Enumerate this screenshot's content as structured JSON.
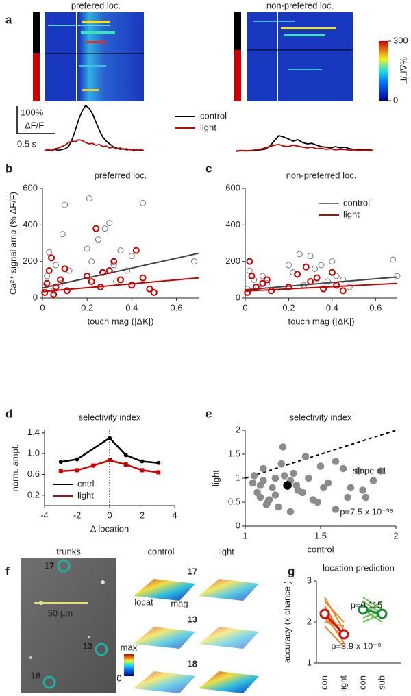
{
  "panel_labels": [
    "a",
    "b",
    "c",
    "d",
    "e",
    "f",
    "g"
  ],
  "panel_f": {
    "title": "trunks",
    "scale": "50 µm",
    "rois": [
      "17",
      "13",
      "18"
    ],
    "columns": [
      "control",
      "light"
    ],
    "row_labels": [
      "17",
      "13",
      "18"
    ],
    "axis_labels": [
      "locat",
      "mag"
    ],
    "colorbar": [
      "max",
      "0"
    ]
  },
  "chart_data": [
    {
      "type": "heatmap",
      "title": "prefered loc."
    },
    {
      "type": "heatmap",
      "title": "non-prefered loc.",
      "colorbar": {
        "label": "%ΔF/F",
        "ylim": [
          0,
          300
        ],
        "yticks": [
          0,
          300
        ]
      }
    },
    {
      "type": "line",
      "scalebar": {
        "y": "100%",
        "y_unit": "ΔF/F",
        "x": "0.5 s"
      },
      "series": [
        {
          "name": "control",
          "color": "#000000",
          "values": [
            5,
            8,
            4,
            10,
            6,
            9,
            12,
            20,
            45,
            80,
            120,
            150,
            170,
            160,
            140,
            110,
            80,
            55,
            40,
            30,
            20,
            15,
            10,
            12,
            8,
            10,
            6,
            9,
            7,
            5
          ]
        },
        {
          "name": "light",
          "color": "#cc0000",
          "values": [
            5,
            10,
            6,
            12,
            15,
            20,
            25,
            35,
            40,
            38,
            45,
            42,
            35,
            30,
            32,
            25,
            28,
            20,
            22,
            15,
            18,
            12,
            15,
            10,
            12,
            8,
            10,
            7,
            9,
            6
          ]
        }
      ]
    },
    {
      "type": "line",
      "series": [
        {
          "color": "#000000",
          "values": [
            3,
            5,
            4,
            6,
            5,
            8,
            10,
            20,
            40,
            60,
            55,
            48,
            40,
            45,
            35,
            30,
            32,
            25,
            20,
            18,
            15,
            20,
            15,
            18,
            12,
            10,
            8,
            10,
            8,
            6
          ]
        },
        {
          "color": "#cc0000",
          "values": [
            4,
            6,
            5,
            5,
            8,
            10,
            15,
            20,
            25,
            28,
            22,
            20,
            25,
            22,
            18,
            15,
            18,
            12,
            14,
            10,
            12,
            8,
            10,
            9,
            7,
            8,
            6,
            7,
            6,
            5
          ]
        }
      ]
    },
    {
      "type": "scatter",
      "title": "preferred loc.",
      "xlabel": "touch mag (|ΔK|)",
      "ylabel": "Ca²⁺ signal amp (% ΔF/F)",
      "xlim": [
        0,
        0.7
      ],
      "xticks": [
        0,
        0.2,
        0.4,
        0.6
      ],
      "ylim": [
        0,
        600
      ],
      "yticks": [
        0,
        200,
        400,
        600
      ],
      "fit_x": [
        0,
        0.7
      ],
      "series": [
        {
          "color": "#777777",
          "x": [
            0.01,
            0.02,
            0.03,
            0.05,
            0.06,
            0.08,
            0.1,
            0.12,
            0.2,
            0.21,
            0.22,
            0.25,
            0.28,
            0.3,
            0.32,
            0.35,
            0.38,
            0.4,
            0.45,
            0.68,
            0.09,
            0.33
          ],
          "values": [
            60,
            120,
            250,
            40,
            180,
            80,
            510,
            150,
            270,
            545,
            200,
            320,
            380,
            410,
            180,
            260,
            150,
            230,
            520,
            200,
            350,
            90
          ],
          "fit_y": [
            55,
            245
          ]
        },
        {
          "color": "#cc0000",
          "x": [
            0.01,
            0.02,
            0.03,
            0.04,
            0.06,
            0.08,
            0.1,
            0.11,
            0.2,
            0.22,
            0.24,
            0.26,
            0.3,
            0.32,
            0.35,
            0.4,
            0.42,
            0.45,
            0.48,
            0.5,
            0.05,
            0.27
          ],
          "values": [
            30,
            80,
            150,
            220,
            60,
            100,
            160,
            40,
            120,
            90,
            380,
            60,
            150,
            200,
            100,
            70,
            260,
            110,
            50,
            30,
            20,
            140
          ],
          "fit_y": [
            35,
            110
          ]
        }
      ]
    },
    {
      "type": "scatter",
      "title": "non-preferred loc.",
      "xlabel": "touch mag (|ΔK|)",
      "xlim": [
        0,
        0.7
      ],
      "xticks": [
        0,
        0.2,
        0.4,
        0.6
      ],
      "ylim": [
        0,
        600
      ],
      "yticks": [
        0,
        200,
        400,
        600
      ],
      "legend": "upper right",
      "fit_x": [
        0,
        0.7
      ],
      "series": [
        {
          "name": "control",
          "color": "#777777",
          "x": [
            0.01,
            0.02,
            0.04,
            0.06,
            0.08,
            0.1,
            0.2,
            0.22,
            0.25,
            0.3,
            0.32,
            0.35,
            0.38,
            0.4,
            0.42,
            0.45,
            0.48,
            0.68,
            0.7,
            0.27
          ],
          "values": [
            50,
            150,
            100,
            60,
            120,
            80,
            180,
            140,
            240,
            230,
            160,
            180,
            90,
            200,
            120,
            100,
            60,
            210,
            120,
            70
          ],
          "fit_y": [
            45,
            115
          ]
        },
        {
          "name": "light",
          "color": "#cc0000",
          "x": [
            0.01,
            0.02,
            0.03,
            0.05,
            0.08,
            0.1,
            0.12,
            0.2,
            0.24,
            0.28,
            0.3,
            0.33,
            0.36,
            0.4,
            0.42,
            0.45
          ],
          "values": [
            30,
            200,
            120,
            60,
            80,
            100,
            40,
            60,
            130,
            170,
            90,
            110,
            50,
            140,
            70,
            40
          ],
          "fit_y": [
            38,
            80
          ]
        }
      ]
    },
    {
      "type": "markerline",
      "title": "selectivity index",
      "xlabel": "Δ location",
      "ylabel": "norm. ampl.",
      "xlim": [
        -4,
        4
      ],
      "xticks": [
        -4,
        -2,
        0,
        2,
        4
      ],
      "ylim": [
        0,
        1.45
      ],
      "yticks": [
        0.2,
        0.6,
        {
          "value": 1,
          "label": "1.0"
        },
        1.4
      ],
      "zero_line": true,
      "legend": "lower left",
      "series": [
        {
          "name": "cntrl",
          "color": "#000000",
          "marker": "circle",
          "x": [
            -3,
            -2,
            0,
            1,
            2,
            3
          ],
          "values": [
            0.84,
            0.89,
            1.3,
            0.97,
            0.85,
            0.82
          ]
        },
        {
          "name": "light",
          "color": "#cc0000",
          "marker": "square",
          "x": [
            -3,
            -2,
            -1,
            0,
            1,
            2,
            3
          ],
          "values": [
            0.66,
            0.68,
            0.77,
            0.87,
            0.79,
            0.68,
            0.64
          ]
        }
      ]
    },
    {
      "type": "scatter",
      "title": "selectivity index",
      "xlabel": "control",
      "ylabel": "light",
      "ylabel_color": "#cc0000",
      "xlim": [
        1,
        2
      ],
      "xticks": [
        1,
        1.5,
        2
      ],
      "ylim": [
        0,
        2
      ],
      "yticks": [
        0,
        0.5,
        1,
        1.5,
        2
      ],
      "identity_line": true,
      "annotations": [
        "slope =1",
        "p=7.5 x 10⁻³⁶"
      ],
      "series": [
        {
          "color": "#8c8c8c",
          "x": [
            1.05,
            1.08,
            1.1,
            1.12,
            1.15,
            1.18,
            1.2,
            1.22,
            1.25,
            1.3,
            1.32,
            1.35,
            1.4,
            1.45,
            1.5,
            1.55,
            1.6,
            1.65,
            1.7,
            1.75,
            1.8,
            1.85,
            1.9,
            1.06,
            1.1,
            1.14,
            1.2,
            1.24,
            1.3,
            1.38,
            1.42,
            1.48,
            1.52,
            1.6,
            1.68,
            1.78,
            1.12,
            1.16,
            1.26,
            1.34
          ],
          "values": [
            0.9,
            0.7,
            0.6,
            1.2,
            0.5,
            0.8,
            1.0,
            0.4,
            1.65,
            0.3,
            1.1,
            0.75,
            1.45,
            0.55,
            1.25,
            0.9,
            0.35,
            1.2,
            0.8,
            1.15,
            0.6,
            0.95,
            1.15,
            1.05,
            0.85,
            0.45,
            0.65,
            1.3,
            0.95,
            0.7,
            1.0,
            0.5,
            0.8,
            1.35,
            0.6,
            0.75,
            0.95,
            0.55,
            1.05,
            0.85
          ]
        },
        {
          "color": "#000000",
          "x": [
            1.28
          ],
          "values": [
            0.85
          ]
        }
      ]
    },
    {
      "type": "paired",
      "title": "location prediction",
      "ylabel": "accuracy (x chance )",
      "ylim": [
        1,
        3
      ],
      "yticks": [
        1,
        2,
        3
      ],
      "categories": [
        "con",
        "light",
        "con",
        "sub"
      ],
      "annotations": [
        "p=0.115",
        "p=3.9 x 10⁻⁹"
      ],
      "groups": [
        {
          "color": "#f08020",
          "mean_color": "#cc1111",
          "mean": [
            2.2,
            1.7
          ],
          "pairs": [
            [
              2.6,
              1.8
            ],
            [
              2.4,
              1.6
            ],
            [
              2.2,
              1.5
            ],
            [
              2.0,
              1.9
            ],
            [
              2.3,
              1.7
            ],
            [
              1.9,
              1.4
            ],
            [
              2.5,
              2.0
            ],
            [
              2.1,
              1.6
            ]
          ]
        },
        {
          "color": "#5cc040",
          "mean_color": "#1a8a3a",
          "mean": [
            2.3,
            2.2
          ],
          "pairs": [
            [
              2.5,
              2.2
            ],
            [
              2.3,
              2.0
            ],
            [
              2.2,
              2.5
            ],
            [
              2.1,
              2.3
            ],
            [
              2.4,
              2.1
            ],
            [
              2.0,
              2.2
            ],
            [
              2.6,
              2.3
            ]
          ]
        }
      ]
    }
  ]
}
